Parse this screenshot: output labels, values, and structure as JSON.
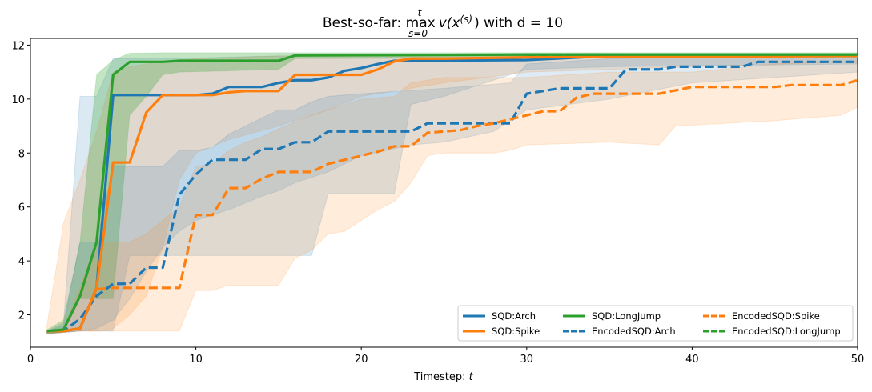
{
  "chart_data": {
    "type": "line",
    "title_prefix": "Best-so-far: ",
    "title_max": "max",
    "title_sup": "t",
    "title_sub": "s=0",
    "title_expr": "v(x",
    "title_expr_sup": "(s)",
    "title_suffix": ") with d = 10",
    "xlabel": "Timestep: ",
    "xlabel_var": "t",
    "ylabel": "",
    "xlim": [
      0,
      50
    ],
    "ylim": [
      0.8,
      12.25
    ],
    "xticks": [
      0,
      10,
      20,
      30,
      40,
      50
    ],
    "yticks": [
      2,
      4,
      6,
      8,
      10,
      12
    ],
    "legend_position": "lower-right",
    "legend_columns": 3,
    "colors": {
      "blue": "#1f77b4",
      "orange": "#ff7f0e",
      "green": "#2ca02c"
    },
    "series": [
      {
        "name": "SQD:Arch",
        "color": "#1f77b4",
        "style": "solid",
        "points": [
          [
            1,
            1.4
          ],
          [
            2,
            1.4
          ],
          [
            3,
            1.5
          ],
          [
            4,
            3.0
          ],
          [
            5,
            10.15
          ],
          [
            10,
            10.15
          ],
          [
            11,
            10.2
          ],
          [
            12,
            10.45
          ],
          [
            14,
            10.45
          ],
          [
            15,
            10.6
          ],
          [
            16,
            10.7
          ],
          [
            17,
            10.7
          ],
          [
            18,
            10.8
          ],
          [
            19,
            11.05
          ],
          [
            20,
            11.15
          ],
          [
            21,
            11.3
          ],
          [
            22,
            11.42
          ],
          [
            30,
            11.45
          ],
          [
            35,
            11.6
          ],
          [
            50,
            11.6
          ]
        ],
        "band_upper": [
          [
            1,
            1.4
          ],
          [
            2,
            1.7
          ],
          [
            3,
            10.1
          ],
          [
            4,
            10.1
          ],
          [
            5,
            11.5
          ],
          [
            8,
            11.5
          ],
          [
            15,
            11.6
          ],
          [
            50,
            11.65
          ]
        ],
        "band_lower": [
          [
            1,
            1.3
          ],
          [
            2,
            1.35
          ],
          [
            3,
            1.4
          ],
          [
            4,
            1.4
          ],
          [
            5,
            1.4
          ],
          [
            6,
            4.2
          ],
          [
            9,
            4.2
          ],
          [
            10,
            4.2
          ],
          [
            17,
            4.2
          ],
          [
            18,
            6.5
          ],
          [
            22,
            6.5
          ],
          [
            23,
            9.8
          ],
          [
            25,
            10.1
          ],
          [
            30,
            11.1
          ],
          [
            35,
            11.2
          ],
          [
            50,
            11.3
          ]
        ]
      },
      {
        "name": "SQD:Spike",
        "color": "#ff7f0e",
        "style": "solid",
        "points": [
          [
            1,
            1.4
          ],
          [
            2,
            1.4
          ],
          [
            3,
            1.5
          ],
          [
            4,
            3.0
          ],
          [
            5,
            7.65
          ],
          [
            6,
            7.65
          ],
          [
            7,
            9.5
          ],
          [
            8,
            10.15
          ],
          [
            11,
            10.15
          ],
          [
            12,
            10.25
          ],
          [
            13,
            10.3
          ],
          [
            15,
            10.3
          ],
          [
            16,
            10.9
          ],
          [
            17,
            10.9
          ],
          [
            18,
            10.9
          ],
          [
            20,
            10.9
          ],
          [
            21,
            11.1
          ],
          [
            22,
            11.4
          ],
          [
            23,
            11.5
          ],
          [
            25,
            11.5
          ],
          [
            30,
            11.55
          ],
          [
            50,
            11.6
          ]
        ],
        "band_upper": [
          [
            1,
            1.6
          ],
          [
            2,
            5.4
          ],
          [
            3,
            7.0
          ],
          [
            4,
            8.8
          ],
          [
            5,
            11.0
          ],
          [
            6,
            11.2
          ],
          [
            8,
            11.4
          ],
          [
            10,
            11.5
          ],
          [
            15,
            11.6
          ],
          [
            50,
            11.65
          ]
        ],
        "band_lower": [
          [
            1,
            1.3
          ],
          [
            2,
            1.35
          ],
          [
            3,
            1.4
          ],
          [
            4,
            1.4
          ],
          [
            5,
            1.5
          ],
          [
            6,
            2.0
          ],
          [
            7,
            2.7
          ],
          [
            8,
            4.5
          ],
          [
            9,
            7.0
          ],
          [
            10,
            8.0
          ],
          [
            12,
            8.5
          ],
          [
            15,
            9.0
          ],
          [
            18,
            9.6
          ],
          [
            20,
            10.1
          ],
          [
            25,
            10.6
          ],
          [
            30,
            11.0
          ],
          [
            50,
            11.4
          ]
        ]
      },
      {
        "name": "SQD:LongJump",
        "color": "#2ca02c",
        "style": "solid",
        "points": [
          [
            1,
            1.4
          ],
          [
            2,
            1.45
          ],
          [
            3,
            2.7
          ],
          [
            4,
            4.7
          ],
          [
            5,
            10.9
          ],
          [
            6,
            11.38
          ],
          [
            7,
            11.38
          ],
          [
            8,
            11.38
          ],
          [
            9,
            11.42
          ],
          [
            10,
            11.42
          ],
          [
            15,
            11.42
          ],
          [
            16,
            11.62
          ],
          [
            20,
            11.63
          ],
          [
            30,
            11.65
          ],
          [
            50,
            11.65
          ]
        ],
        "band_upper": [
          [
            1,
            1.45
          ],
          [
            2,
            1.8
          ],
          [
            3,
            4.7
          ],
          [
            4,
            10.9
          ],
          [
            5,
            11.45
          ],
          [
            6,
            11.7
          ],
          [
            8,
            11.72
          ],
          [
            50,
            11.72
          ]
        ],
        "band_lower": [
          [
            1,
            1.3
          ],
          [
            2,
            1.35
          ],
          [
            3,
            2.6
          ],
          [
            4,
            2.6
          ],
          [
            5,
            2.6
          ],
          [
            6,
            9.4
          ],
          [
            7,
            10.1
          ],
          [
            8,
            10.9
          ],
          [
            9,
            11.0
          ],
          [
            15,
            11.1
          ],
          [
            16,
            11.5
          ],
          [
            50,
            11.55
          ]
        ]
      },
      {
        "name": "EncodedSQD:Arch",
        "color": "#1f77b4",
        "style": "dashed",
        "points": [
          [
            1,
            1.4
          ],
          [
            2,
            1.4
          ],
          [
            3,
            1.85
          ],
          [
            4,
            2.7
          ],
          [
            5,
            3.15
          ],
          [
            6,
            3.15
          ],
          [
            7,
            3.75
          ],
          [
            8,
            3.75
          ],
          [
            9,
            6.45
          ],
          [
            10,
            7.2
          ],
          [
            11,
            7.75
          ],
          [
            12,
            7.75
          ],
          [
            13,
            7.75
          ],
          [
            14,
            8.15
          ],
          [
            15,
            8.15
          ],
          [
            16,
            8.4
          ],
          [
            17,
            8.4
          ],
          [
            18,
            8.8
          ],
          [
            23,
            8.8
          ],
          [
            24,
            9.1
          ],
          [
            29,
            9.1
          ],
          [
            30,
            10.2
          ],
          [
            32,
            10.4
          ],
          [
            35,
            10.4
          ],
          [
            36,
            11.1
          ],
          [
            38,
            11.1
          ],
          [
            39,
            11.2
          ],
          [
            43,
            11.2
          ],
          [
            44,
            11.38
          ],
          [
            50,
            11.38
          ]
        ],
        "band_upper": [
          [
            1,
            1.4
          ],
          [
            2,
            1.6
          ],
          [
            3,
            4.7
          ],
          [
            4,
            4.7
          ],
          [
            5,
            7.5
          ],
          [
            8,
            7.5
          ],
          [
            9,
            8.1
          ],
          [
            10,
            8.1
          ],
          [
            11,
            8.2
          ],
          [
            12,
            8.7
          ],
          [
            13,
            9.0
          ],
          [
            14,
            9.3
          ],
          [
            15,
            9.6
          ],
          [
            16,
            9.6
          ],
          [
            17,
            9.9
          ],
          [
            18,
            10.1
          ],
          [
            20,
            10.2
          ],
          [
            25,
            10.4
          ],
          [
            29,
            10.6
          ],
          [
            30,
            11.3
          ],
          [
            35,
            11.5
          ],
          [
            40,
            11.55
          ],
          [
            50,
            11.6
          ]
        ],
        "band_lower": [
          [
            1,
            1.3
          ],
          [
            2,
            1.35
          ],
          [
            3,
            1.4
          ],
          [
            4,
            1.5
          ],
          [
            5,
            1.8
          ],
          [
            6,
            2.6
          ],
          [
            7,
            3.6
          ],
          [
            8,
            4.5
          ],
          [
            9,
            5.1
          ],
          [
            10,
            5.5
          ],
          [
            12,
            5.9
          ],
          [
            14,
            6.4
          ],
          [
            15,
            6.6
          ],
          [
            16,
            6.9
          ],
          [
            18,
            7.3
          ],
          [
            19,
            7.6
          ],
          [
            20,
            7.9
          ],
          [
            23,
            8.3
          ],
          [
            25,
            8.4
          ],
          [
            28,
            8.8
          ],
          [
            30,
            9.6
          ],
          [
            35,
            10.0
          ],
          [
            40,
            10.6
          ],
          [
            45,
            10.8
          ],
          [
            50,
            11.0
          ]
        ]
      },
      {
        "name": "EncodedSQD:Spike",
        "color": "#ff7f0e",
        "style": "dashed",
        "points": [
          [
            1,
            1.4
          ],
          [
            2,
            1.4
          ],
          [
            3,
            1.5
          ],
          [
            4,
            2.95
          ],
          [
            5,
            3.0
          ],
          [
            9,
            3.0
          ],
          [
            10,
            5.7
          ],
          [
            11,
            5.7
          ],
          [
            12,
            6.7
          ],
          [
            13,
            6.7
          ],
          [
            14,
            7.05
          ],
          [
            15,
            7.3
          ],
          [
            17,
            7.3
          ],
          [
            18,
            7.6
          ],
          [
            19,
            7.75
          ],
          [
            20,
            7.9
          ],
          [
            21,
            8.05
          ],
          [
            22,
            8.25
          ],
          [
            23,
            8.25
          ],
          [
            24,
            8.75
          ],
          [
            26,
            8.85
          ],
          [
            27,
            9.0
          ],
          [
            28,
            9.1
          ],
          [
            31,
            9.55
          ],
          [
            32,
            9.55
          ],
          [
            33,
            10.05
          ],
          [
            34,
            10.2
          ],
          [
            38,
            10.2
          ],
          [
            40,
            10.45
          ],
          [
            45,
            10.45
          ],
          [
            46,
            10.52
          ],
          [
            49,
            10.52
          ],
          [
            50,
            10.7
          ]
        ],
        "band_upper": [
          [
            1,
            1.4
          ],
          [
            2,
            1.5
          ],
          [
            3,
            3.0
          ],
          [
            4,
            4.7
          ],
          [
            5,
            4.7
          ],
          [
            6,
            4.7
          ],
          [
            7,
            5.0
          ],
          [
            8,
            5.5
          ],
          [
            9,
            6.0
          ],
          [
            10,
            7.5
          ],
          [
            11,
            7.6
          ],
          [
            12,
            8.1
          ],
          [
            13,
            8.4
          ],
          [
            14,
            8.6
          ],
          [
            15,
            8.9
          ],
          [
            17,
            9.4
          ],
          [
            19,
            9.8
          ],
          [
            20,
            10.0
          ],
          [
            22,
            10.1
          ],
          [
            23,
            10.6
          ],
          [
            25,
            10.8
          ],
          [
            30,
            10.8
          ],
          [
            35,
            11.0
          ],
          [
            40,
            11.0
          ],
          [
            45,
            11.3
          ],
          [
            50,
            11.4
          ]
        ],
        "band_lower": [
          [
            1,
            1.3
          ],
          [
            2,
            1.35
          ],
          [
            3,
            1.4
          ],
          [
            4,
            1.4
          ],
          [
            5,
            1.4
          ],
          [
            8,
            1.4
          ],
          [
            9,
            1.4
          ],
          [
            10,
            2.9
          ],
          [
            11,
            2.9
          ],
          [
            12,
            3.1
          ],
          [
            13,
            3.1
          ],
          [
            14,
            3.1
          ],
          [
            15,
            3.1
          ],
          [
            16,
            4.1
          ],
          [
            17,
            4.4
          ],
          [
            18,
            5.0
          ],
          [
            19,
            5.1
          ],
          [
            20,
            5.5
          ],
          [
            21,
            5.9
          ],
          [
            22,
            6.2
          ],
          [
            23,
            6.9
          ],
          [
            24,
            7.9
          ],
          [
            25,
            8.0
          ],
          [
            28,
            8.0
          ],
          [
            29,
            8.1
          ],
          [
            30,
            8.3
          ],
          [
            35,
            8.4
          ],
          [
            38,
            8.3
          ],
          [
            39,
            9.0
          ],
          [
            45,
            9.2
          ],
          [
            49,
            9.4
          ],
          [
            50,
            9.7
          ]
        ]
      },
      {
        "name": "EncodedSQD:LongJump",
        "color": "#2ca02c",
        "style": "dashed",
        "points": [
          [
            30,
            11.62
          ],
          [
            50,
            11.62
          ]
        ],
        "band_upper": [],
        "band_lower": []
      }
    ]
  }
}
